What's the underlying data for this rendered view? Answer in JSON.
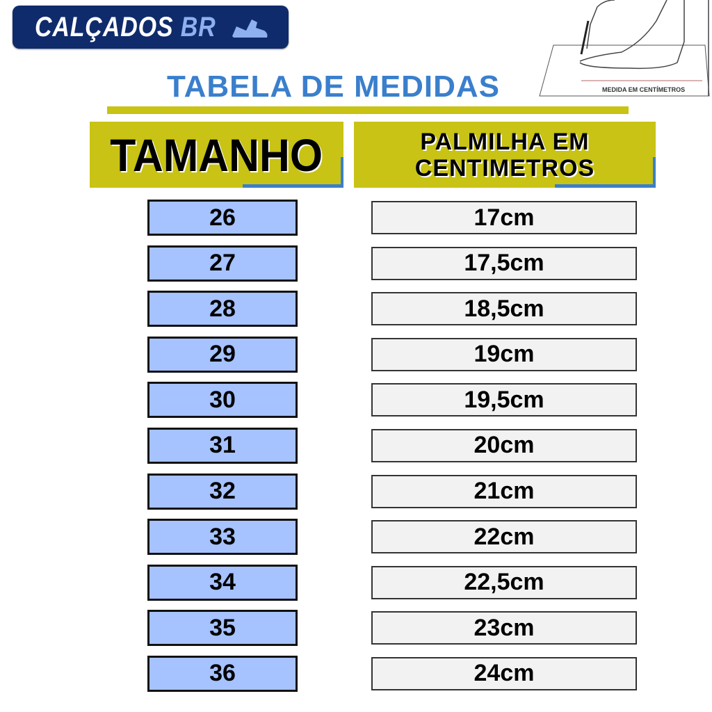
{
  "brand": {
    "name": "CALÇADOS",
    "suffix": "BR",
    "color": "#0f2b6b"
  },
  "illustration": {
    "label": "MEDIDA EM CENTÍMETROS"
  },
  "title": "TABELA DE MEDIDAS",
  "headers": {
    "size": "TAMANHO",
    "insole_line1": "PALMILHA EM",
    "insole_line2": "CENTIMETROS"
  },
  "colors": {
    "title": "#3a7fcc",
    "header_bg": "#c8c314",
    "size_box": "#a6c2ff",
    "cm_box": "#f2f2f2"
  },
  "rows": [
    {
      "size": "26",
      "cm": "17cm"
    },
    {
      "size": "27",
      "cm": "17,5cm"
    },
    {
      "size": "28",
      "cm": "18,5cm"
    },
    {
      "size": "29",
      "cm": "19cm"
    },
    {
      "size": "30",
      "cm": "19,5cm"
    },
    {
      "size": "31",
      "cm": "20cm"
    },
    {
      "size": "32",
      "cm": "21cm"
    },
    {
      "size": "33",
      "cm": "22cm"
    },
    {
      "size": "34",
      "cm": "22,5cm"
    },
    {
      "size": "35",
      "cm": "23cm"
    },
    {
      "size": "36",
      "cm": "24cm"
    }
  ]
}
